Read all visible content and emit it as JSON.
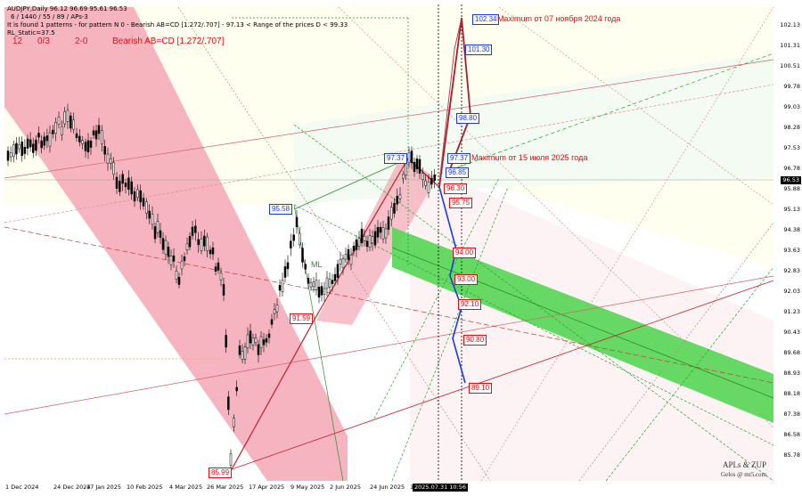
{
  "header": {
    "symbol_line": "AUDJPY,Daily  96.12 96.69 95.61 96.53",
    "settings_line": "6 / 1440 / 55 / 89 / APs-3",
    "pattern_line": "It is found 1 patterns  -  for pattern N 0 - Bearish AB=CD [1.272/.707] - 97.13 < Range of the prices D < 99.33",
    "rl_line": "RL_Static=37.5"
  },
  "overlay": {
    "counter1": "12",
    "counter2": "0/3",
    "marker": "2-0",
    "pattern_name": "Bearish AB=CD [1.272/.707]"
  },
  "current_price": "96.53",
  "y_axis": [
    "102.13",
    "101.31",
    "100.51",
    "99.78",
    "99.03",
    "98.28",
    "97.53",
    "96.78",
    "95.88",
    "95.13",
    "94.38",
    "93.63",
    "92.83",
    "92.03",
    "91.23",
    "90.43",
    "89.68",
    "88.93",
    "88.18",
    "87.38",
    "86.58",
    "85.78"
  ],
  "x_axis": [
    "1 Dec 2024",
    "24 Dec 2024",
    "17 Jan 2025",
    "10 Feb 2025",
    "4 Mar 2025",
    "26 Mar 2025",
    "17 Apr 2025",
    "9 May 2025",
    "2 Jun 2025",
    "24 Jun 2025",
    "16 Jul 2025"
  ],
  "current_date": "2025.07.31 10:56",
  "price_tags": {
    "high_a": "97.37",
    "b": "95.58",
    "c": "91.59",
    "low": "85.99",
    "t1": "102.34",
    "t2": "101.30",
    "t3": "98.80",
    "t4": "97.37",
    "t5": "96.85",
    "t6": "96.30",
    "t7": "95.75",
    "t8": "94.00",
    "t9": "93.00",
    "t10": "92.10",
    "t11": "90.80",
    "t12": "89.10"
  },
  "notes": {
    "max_2024": "Maximum от 07 ноября 2024 года",
    "max_2025": "Maximum от 15 июля 2025 года"
  },
  "line_labels": {
    "ml": "ML"
  },
  "watermark": {
    "name": "APLs & ZUP",
    "site": "Gelos @ mt5.com"
  },
  "colors": {
    "up_candle": "#ffffff",
    "down_candle": "#000000",
    "pink_channel": "#f4a0b0",
    "green_channel": "#66dd66",
    "pattern_red": "#c0202a",
    "forecast_blue": "#1a3adf",
    "forecast_red": "#c0202a",
    "tag_blue": "#1a3adf",
    "tag_red": "#e01010"
  }
}
